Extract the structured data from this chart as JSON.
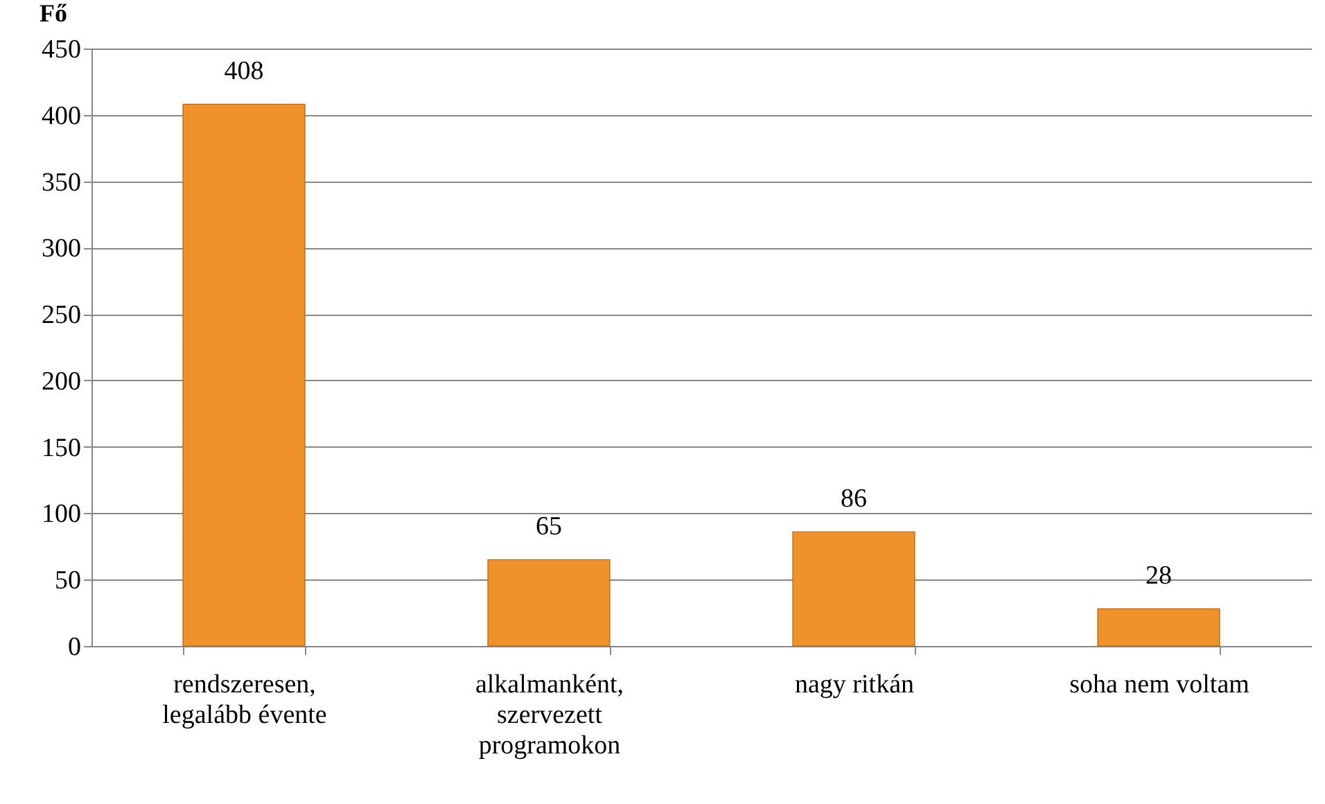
{
  "chart_data": {
    "type": "bar",
    "ylabel": "Fő",
    "categories": [
      "rendszeresen, legalább évente",
      "alkalmanként, szervezett programokon",
      "nagy ritkán",
      "soha nem voltam"
    ],
    "values": [
      408,
      65,
      86,
      28
    ],
    "color": "#f0922b",
    "ylim": [
      0,
      450
    ],
    "yticks": [
      0,
      50,
      100,
      150,
      200,
      250,
      300,
      350,
      400,
      450
    ],
    "grid": "y",
    "data_labels": true
  }
}
